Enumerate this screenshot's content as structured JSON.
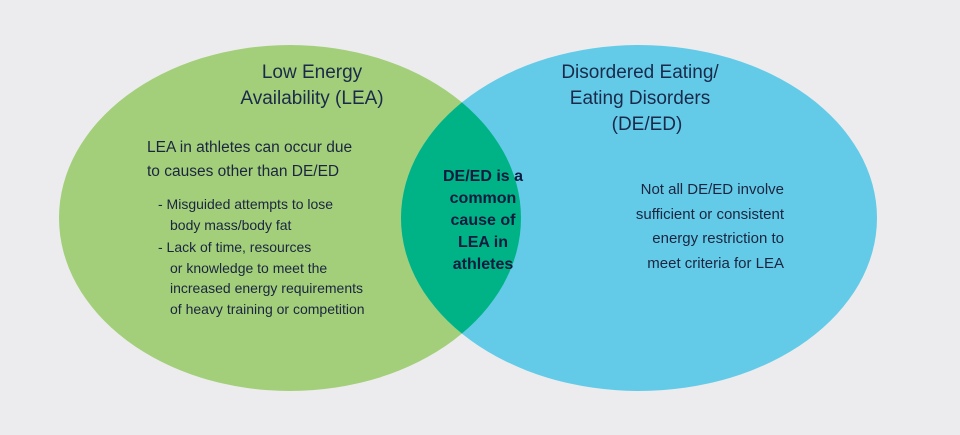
{
  "colors": {
    "background": "#ececee",
    "lea_circle": "#a3cf7a",
    "deed_circle": "#63cbe8",
    "overlap": "#00b386",
    "text": "#1b2540"
  },
  "left": {
    "title": [
      "Low Energy",
      "Availability (LEA)"
    ],
    "body": [
      "LEA in athletes can occur due",
      "to causes other than DE/ED"
    ],
    "bullets": [
      [
        "- Misguided attempts to lose",
        "  body mass/body fat"
      ],
      [
        "- Lack of time, resources",
        "  or knowledge to meet the",
        "  increased energy requirements",
        "  of heavy training or competition"
      ]
    ]
  },
  "right": {
    "title": [
      "Disordered Eating/",
      "Eating Disorders",
      "(DE/ED)"
    ],
    "body": [
      "Not all DE/ED involve",
      "sufficient or consistent",
      "energy restriction to",
      "meet criteria for LEA"
    ]
  },
  "overlap": {
    "text": [
      "DE/ED is a",
      "common",
      "cause of",
      "LEA in",
      "athletes"
    ]
  }
}
